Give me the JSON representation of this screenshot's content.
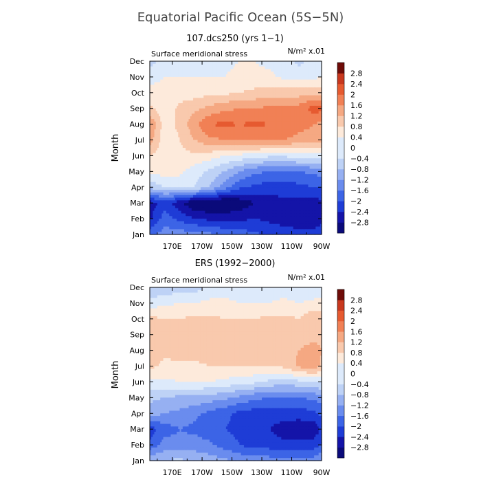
{
  "title": "Equatorial Pacific Ocean (5S−5N)",
  "colors": {
    "-2.8": "#0a0a7a",
    "-2.4": "#1414a8",
    "-2": "#1e3cd6",
    "-1.6": "#3c64e6",
    "-1.2": "#6a8cee",
    "-0.8": "#96b0f2",
    "-0.4": "#bed2f6",
    "0": "#ddeafb",
    "0.4": "#fdeadb",
    "0.8": "#f9c9ad",
    "1.2": "#f5a882",
    "1.6": "#f18055",
    "2": "#e65a30",
    "2.4": "#c8381e",
    "2.8": "#9e1a12",
    "over": "#6e0c08"
  },
  "chart_data": [
    {
      "type": "heatmap",
      "title": "107.dcs250 (yrs 1−1)",
      "variable_label": "Surface meridional stress",
      "units_label": "N/m² x.01",
      "ylabel": "Month",
      "xlabel": "",
      "x_ticks": [
        "170E",
        "170W",
        "150W",
        "130W",
        "110W",
        "90W"
      ],
      "y_ticks": [
        "Jan",
        "Feb",
        "Mar",
        "Apr",
        "May",
        "Jun",
        "Jul",
        "Aug",
        "Sep",
        "Oct",
        "Nov",
        "Dec"
      ],
      "xlim_deg_east": [
        155,
        270
      ],
      "colorbar_levels": [
        -2.8,
        -2.4,
        -2,
        -1.6,
        -1.2,
        -0.8,
        -0.4,
        0,
        0.4,
        0.8,
        1.2,
        1.6,
        2,
        2.4,
        2.8
      ],
      "lons_deg_east": [
        155,
        165,
        175,
        185,
        195,
        205,
        215,
        225,
        235,
        245,
        255,
        265,
        270
      ],
      "values": [
        [
          -1.3,
          -1.0,
          -1.0,
          -1.0,
          -1.1,
          -1.3,
          -1.4,
          -1.5,
          -1.7,
          -1.8,
          -1.9,
          -1.9,
          -1.8
        ],
        [
          -2.1,
          -1.4,
          -1.7,
          -2.0,
          -2.1,
          -2.1,
          -2.1,
          -2.0,
          -2.1,
          -2.2,
          -2.2,
          -2.2,
          -2.1
        ],
        [
          -2.2,
          -1.8,
          -2.3,
          -2.8,
          -2.9,
          -2.9,
          -2.7,
          -2.4,
          -2.2,
          -2.1,
          -2.1,
          -2.2,
          -2.1
        ],
        [
          -0.3,
          0.0,
          0.1,
          0.0,
          -0.4,
          -1.0,
          -1.5,
          -1.7,
          -1.8,
          -1.8,
          -1.7,
          -1.6,
          -1.6
        ],
        [
          0.5,
          0.6,
          0.5,
          0.2,
          -0.1,
          -0.4,
          -0.8,
          -1.1,
          -1.2,
          -1.3,
          -1.2,
          -1.1,
          -1.0
        ],
        [
          0.8,
          0.6,
          0.7,
          0.7,
          0.6,
          0.4,
          0.3,
          0.2,
          0.1,
          0.1,
          0.2,
          0.2,
          0.3
        ],
        [
          1.4,
          0.5,
          0.8,
          1.2,
          1.5,
          1.6,
          1.7,
          1.7,
          1.7,
          1.6,
          1.5,
          1.5,
          1.5
        ],
        [
          1.6,
          0.6,
          0.9,
          1.5,
          2.0,
          2.1,
          2.0,
          2.1,
          2.0,
          1.9,
          1.7,
          1.6,
          1.5
        ],
        [
          0.9,
          0.5,
          0.9,
          1.1,
          1.3,
          1.5,
          1.6,
          1.6,
          1.7,
          1.7,
          1.8,
          2.2,
          2.1
        ],
        [
          0.5,
          0.5,
          0.6,
          0.6,
          0.7,
          0.7,
          0.8,
          0.9,
          1.0,
          1.0,
          1.0,
          1.1,
          1.0
        ],
        [
          0.3,
          0.4,
          0.4,
          0.4,
          0.4,
          0.4,
          0.5,
          0.5,
          0.5,
          0.3,
          0.2,
          0.3,
          0.4
        ],
        [
          -0.2,
          0.2,
          0.3,
          0.3,
          0.3,
          0.3,
          0.4,
          0.4,
          0.3,
          0.2,
          -0.1,
          0.2,
          0.3
        ]
      ]
    },
    {
      "type": "heatmap",
      "title": "ERS (1992−2000)",
      "variable_label": "Surface meridional stress",
      "units_label": "N/m² x.01",
      "ylabel": "Month",
      "xlabel": "",
      "x_ticks": [
        "170E",
        "170W",
        "150W",
        "130W",
        "110W",
        "90W"
      ],
      "y_ticks": [
        "Jan",
        "Feb",
        "Mar",
        "Apr",
        "May",
        "Jun",
        "Jul",
        "Aug",
        "Sep",
        "Oct",
        "Nov",
        "Dec"
      ],
      "xlim_deg_east": [
        155,
        270
      ],
      "colorbar_levels": [
        -2.8,
        -2.4,
        -2,
        -1.6,
        -1.2,
        -0.8,
        -0.4,
        0,
        0.4,
        0.8,
        1.2,
        1.6,
        2,
        2.4,
        2.8
      ],
      "lons_deg_east": [
        155,
        165,
        175,
        185,
        195,
        205,
        215,
        225,
        235,
        245,
        255,
        265,
        270
      ],
      "values": [
        [
          -0.5,
          -0.4,
          -0.3,
          -0.5,
          -0.6,
          -0.7,
          -0.9,
          -0.9,
          -1.0,
          -1.1,
          -1.0,
          -1.0,
          -0.8
        ],
        [
          -1.5,
          -1.0,
          -1.1,
          -1.0,
          -1.1,
          -1.4,
          -1.6,
          -1.8,
          -1.8,
          -1.9,
          -1.9,
          -1.8,
          -1.6
        ],
        [
          -1.8,
          -1.4,
          -1.2,
          -1.3,
          -1.5,
          -1.6,
          -1.7,
          -1.9,
          -2.0,
          -2.2,
          -2.3,
          -2.3,
          -1.9
        ],
        [
          -0.6,
          -0.8,
          -0.9,
          -1.1,
          -1.3,
          -1.5,
          -1.7,
          -1.8,
          -1.8,
          -1.8,
          -1.8,
          -1.7,
          -1.5
        ],
        [
          -0.3,
          -0.4,
          -0.5,
          -0.5,
          -0.6,
          -0.7,
          -0.9,
          -1.1,
          -1.2,
          -1.2,
          -1.2,
          -1.1,
          -1.0
        ],
        [
          0.3,
          0.3,
          0.4,
          0.4,
          0.4,
          0.3,
          0.2,
          0.1,
          -0.1,
          -0.2,
          -0.1,
          0.0,
          0.1
        ],
        [
          0.9,
          0.7,
          0.7,
          0.7,
          0.8,
          0.8,
          0.8,
          0.8,
          0.8,
          0.9,
          1.3,
          1.5,
          1.1
        ],
        [
          1.0,
          0.9,
          1.0,
          1.0,
          1.0,
          0.9,
          1.0,
          1.0,
          1.0,
          1.1,
          1.2,
          1.4,
          1.2
        ],
        [
          1.2,
          0.9,
          1.0,
          1.1,
          1.0,
          1.0,
          1.0,
          1.1,
          1.0,
          1.0,
          1.0,
          1.0,
          1.1
        ],
        [
          0.9,
          0.8,
          0.8,
          0.9,
          0.9,
          0.8,
          0.8,
          0.8,
          0.9,
          0.9,
          0.8,
          1.2,
          1.0
        ],
        [
          0.2,
          0.3,
          0.4,
          0.4,
          0.5,
          0.5,
          0.4,
          0.4,
          0.4,
          0.5,
          0.4,
          0.5,
          0.5
        ],
        [
          -0.4,
          -0.3,
          -0.2,
          -0.2,
          0.1,
          0.2,
          0.1,
          0.0,
          0.2,
          0.2,
          0.0,
          0.1,
          0.1
        ]
      ]
    }
  ]
}
